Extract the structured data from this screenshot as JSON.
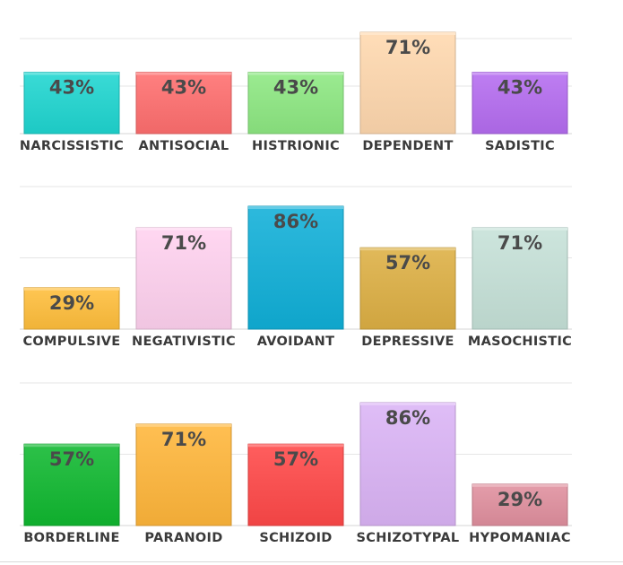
{
  "chart_data": [
    {
      "type": "bar",
      "categories": [
        "NARCISSISTIC",
        "ANTISOCIAL",
        "HISTRIONIC",
        "DEPENDENT",
        "SADISTIC"
      ],
      "values": [
        43,
        43,
        43,
        71,
        43
      ],
      "labels": [
        "43%",
        "43%",
        "43%",
        "71%",
        "43%"
      ],
      "colors": [
        "#1fd6d0",
        "#ff6f6f",
        "#8de882",
        "#ffd8ae",
        "#b56cf0"
      ],
      "ylim": [
        0,
        75
      ],
      "grid": true
    },
    {
      "type": "bar",
      "categories": [
        "COMPULSIVE",
        "NEGATIVISTIC",
        "AVOIDANT",
        "DEPRESSIVE",
        "MASOCHISTIC"
      ],
      "values": [
        29,
        71,
        86,
        57,
        71
      ],
      "labels": [
        "29%",
        "71%",
        "86%",
        "57%",
        "71%"
      ],
      "colors": [
        "#ffbe3c",
        "#ffd2ef",
        "#10b0d8",
        "#ddb044",
        "#c6e2d8"
      ],
      "ylim": [
        0,
        90
      ],
      "grid": true
    },
    {
      "type": "bar",
      "categories": [
        "BORDERLINE",
        "PARANOID",
        "SCHIZOID",
        "SCHIZOTYPAL",
        "HYPOMANIAC"
      ],
      "values": [
        57,
        71,
        57,
        86,
        29
      ],
      "labels": [
        "57%",
        "71%",
        "57%",
        "86%",
        "29%"
      ],
      "colors": [
        "#10b830",
        "#ffb63a",
        "#ff4848",
        "#dbb4f6",
        "#e0909e"
      ],
      "ylim": [
        0,
        90
      ],
      "grid": true
    }
  ]
}
